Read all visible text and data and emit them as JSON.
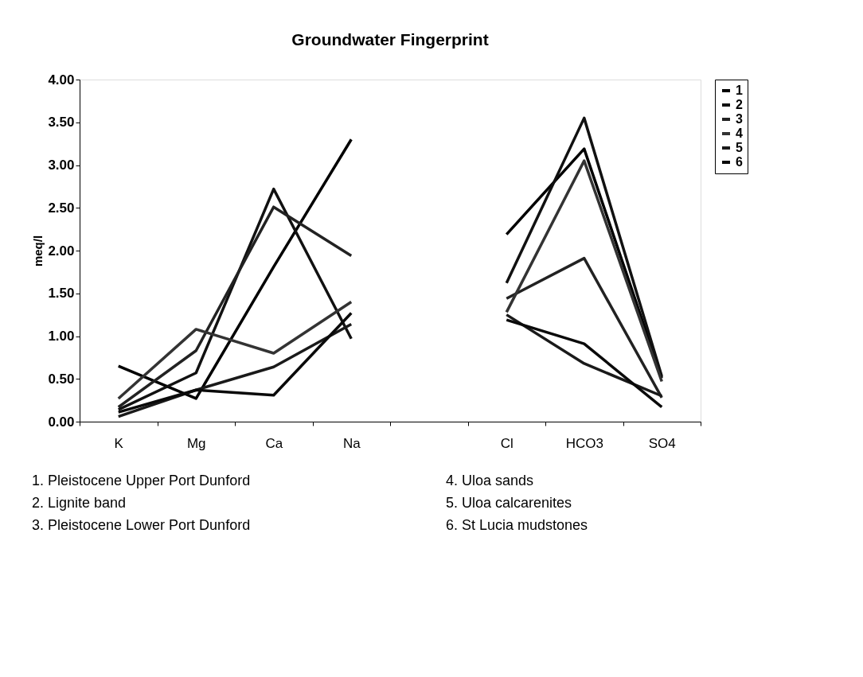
{
  "chart_data": {
    "type": "line",
    "title": "Groundwater Fingerprint",
    "ylabel": "meq/l",
    "categories": [
      "K",
      "Mg",
      "Ca",
      "Na",
      null,
      "Cl",
      "HCO3",
      "SO4"
    ],
    "ylim": [
      0,
      4
    ],
    "yticks": [
      {
        "value": 0,
        "label": "0.00"
      },
      {
        "value": 0.5,
        "label": "0.50"
      },
      {
        "value": 1,
        "label": "1.00"
      },
      {
        "value": 1.5,
        "label": "1.50"
      },
      {
        "value": 2,
        "label": "2.00"
      },
      {
        "value": 2.5,
        "label": "2.50"
      },
      {
        "value": 3,
        "label": "3.00"
      },
      {
        "value": 3.5,
        "label": "3.50"
      },
      {
        "value": 4,
        "label": "4.00"
      }
    ],
    "series": [
      {
        "name": "1",
        "color": "#000000",
        "values": [
          0.65,
          0.27,
          1.81,
          3.3,
          null,
          2.19,
          3.19,
          0.51
        ]
      },
      {
        "name": "2",
        "color": "#111111",
        "values": [
          0.14,
          0.57,
          2.72,
          0.97,
          null,
          1.62,
          3.55,
          0.53
        ]
      },
      {
        "name": "3",
        "color": "#222222",
        "values": [
          0.17,
          0.83,
          2.51,
          1.94,
          null,
          1.44,
          1.91,
          0.28
        ]
      },
      {
        "name": "4",
        "color": "#333333",
        "values": [
          0.27,
          1.08,
          0.8,
          1.4,
          null,
          1.28,
          3.05,
          0.47
        ]
      },
      {
        "name": "5",
        "color": "#1a1a1a",
        "values": [
          0.06,
          0.37,
          0.64,
          1.14,
          null,
          1.25,
          0.68,
          0.3
        ]
      },
      {
        "name": "6",
        "color": "#0a0a0a",
        "values": [
          0.11,
          0.37,
          0.31,
          1.27,
          null,
          1.19,
          0.91,
          0.17
        ]
      }
    ],
    "grid": false,
    "legend": "right",
    "marker": "none",
    "line_style": "solid",
    "annotations": [
      "1.  Pleistocene Upper Port Dunford",
      "2.  Lignite band",
      "3.  Pleistocene Lower Port Dunford",
      "4. Uloa sands",
      "5. Uloa calcarenites",
      "6. St Lucia mudstones"
    ]
  }
}
